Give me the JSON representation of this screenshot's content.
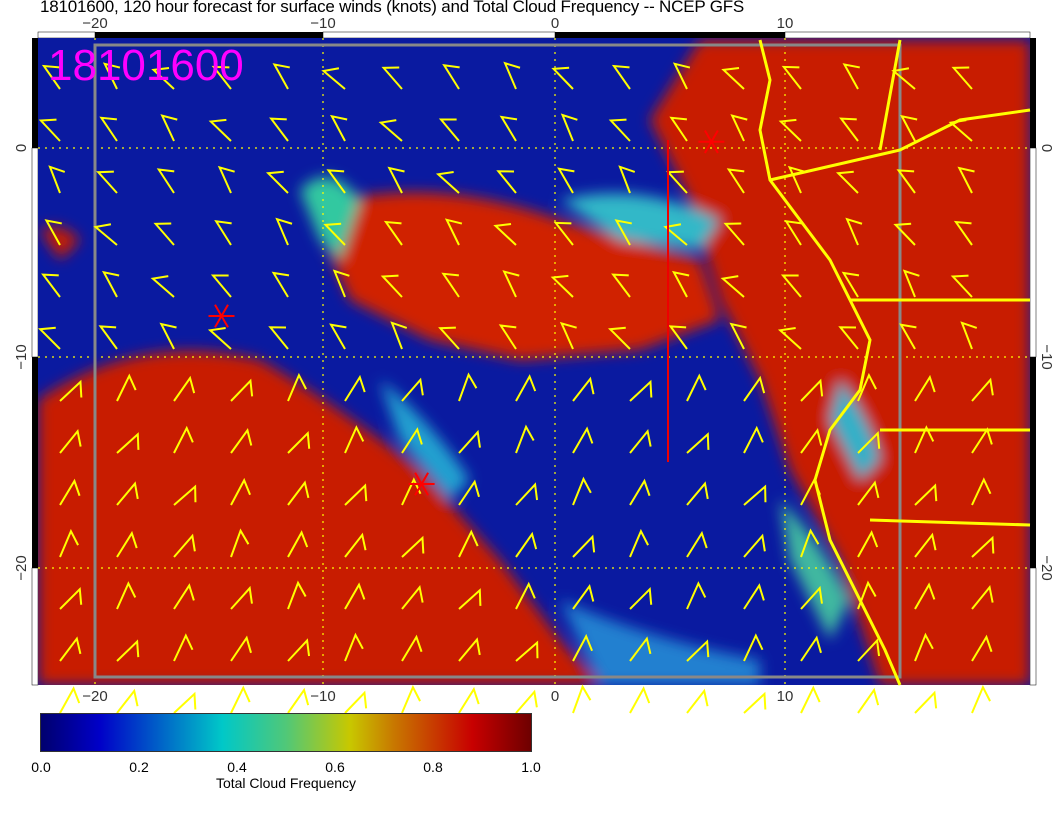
{
  "title": "18101600, 120 hour forecast for surface winds (knots) and Total Cloud Frequency -- NCEP GFS",
  "date_stamp": "18101600",
  "map": {
    "lon_ticks": [
      "−20",
      "−10",
      "0",
      "10"
    ],
    "lat_ticks": [
      "0",
      "−10",
      "−20"
    ],
    "colors": {
      "coastline": "#ffff00",
      "wind_barbs": "#ffff00",
      "grid": "#ffff00",
      "markers": "#ff0000",
      "stamp": "#ff00ff"
    },
    "overlay": "wind barbs (knots)",
    "markers": [
      {
        "icon": "red-asterisk",
        "lon": -14.5,
        "lat": -8
      },
      {
        "icon": "red-asterisk",
        "lon": -5.8,
        "lat": -16
      },
      {
        "icon": "red-asterisk",
        "lon": 6.8,
        "lat": 0.3
      }
    ]
  },
  "colorbar": {
    "ticks": [
      "0.0",
      "0.2",
      "0.4",
      "0.6",
      "0.8",
      "1.0"
    ],
    "label": "Total Cloud Frequency",
    "range": [
      0,
      1
    ],
    "colormap": [
      "#00006e",
      "#0000c8",
      "#00c8c8",
      "#c8c800",
      "#c80000",
      "#6e0000"
    ]
  }
}
